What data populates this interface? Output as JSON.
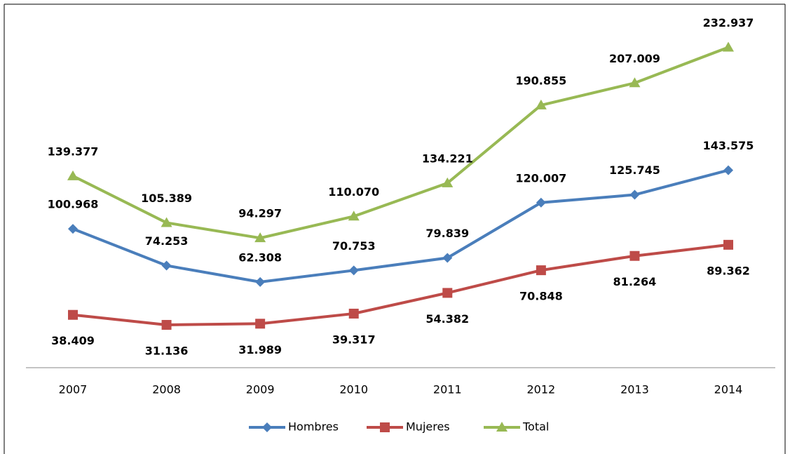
{
  "chart_data": {
    "type": "line",
    "categories": [
      "2007",
      "2008",
      "2009",
      "2010",
      "2011",
      "2012",
      "2013",
      "2014"
    ],
    "series": [
      {
        "name": "Hombres",
        "color": "#4a7ebb",
        "marker": "diamond",
        "values": [
          100968,
          74253,
          62308,
          70753,
          79839,
          120007,
          125745,
          143575
        ],
        "value_labels": [
          "100.968",
          "74.253",
          "62.308",
          "70.753",
          "79.839",
          "120.007",
          "125.745",
          "143.575"
        ]
      },
      {
        "name": "Mujeres",
        "color": "#be4b48",
        "marker": "square",
        "values": [
          38409,
          31136,
          31989,
          39317,
          54382,
          70848,
          81264,
          89362
        ],
        "value_labels": [
          "38.409",
          "31.136",
          "31.989",
          "39.317",
          "54.382",
          "70.848",
          "81.264",
          "89.362"
        ]
      },
      {
        "name": "Total",
        "color": "#98b954",
        "marker": "triangle",
        "values": [
          139377,
          105389,
          94297,
          110070,
          134221,
          190855,
          207009,
          232937
        ],
        "value_labels": [
          "139.377",
          "105.389",
          "94.297",
          "110.070",
          "134.221",
          "190.855",
          "207.009",
          "232.937"
        ]
      }
    ],
    "ylim": [
      0,
      250000
    ],
    "legend": "bottom"
  }
}
